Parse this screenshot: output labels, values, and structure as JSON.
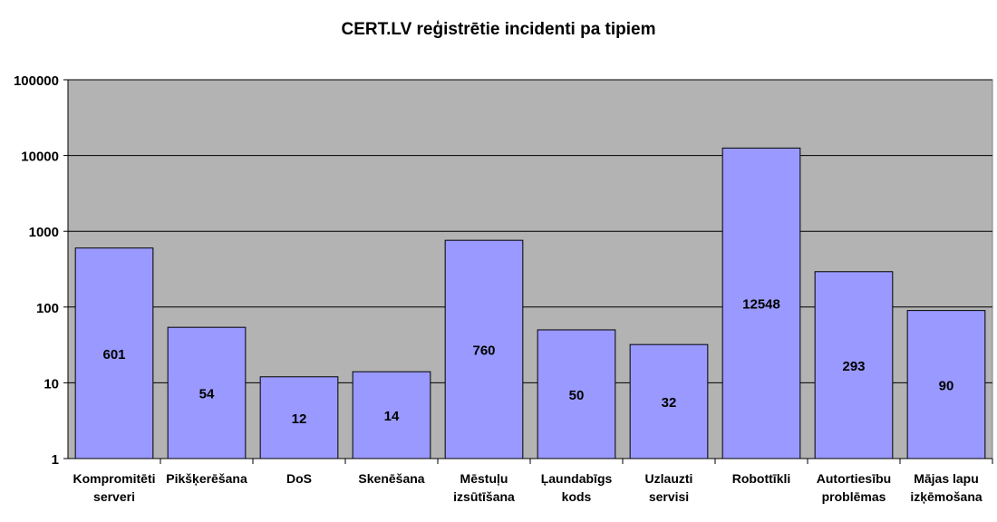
{
  "chart_data": {
    "type": "bar",
    "title": "CERT.LV reģistrētie incidenti pa tipiem",
    "xlabel": "",
    "ylabel": "",
    "y_scale": "log",
    "ylim": [
      1,
      100000
    ],
    "y_ticks": [
      "1",
      "10",
      "100",
      "1000",
      "10000",
      "100000"
    ],
    "grid": true,
    "legend": "none",
    "colors": {
      "plot_bg": "#b3b3b3",
      "bar_fill": "#9999ff",
      "bar_stroke": "#000000"
    },
    "categories": [
      [
        "Kompromitēti",
        "serveri"
      ],
      [
        "Pikšķerēšana"
      ],
      [
        "DoS"
      ],
      [
        "Skenēšana"
      ],
      [
        "Mēstuļu",
        "izsūtīšana"
      ],
      [
        "Ļaundabīgs",
        "kods"
      ],
      [
        "Uzlauzti",
        "servisi"
      ],
      [
        "Robottīkli"
      ],
      [
        "Autortiesību",
        "problēmas"
      ],
      [
        "Mājas lapu",
        "izķēmošana"
      ]
    ],
    "values": [
      601,
      54,
      12,
      14,
      760,
      50,
      32,
      12548,
      293,
      90
    ]
  }
}
